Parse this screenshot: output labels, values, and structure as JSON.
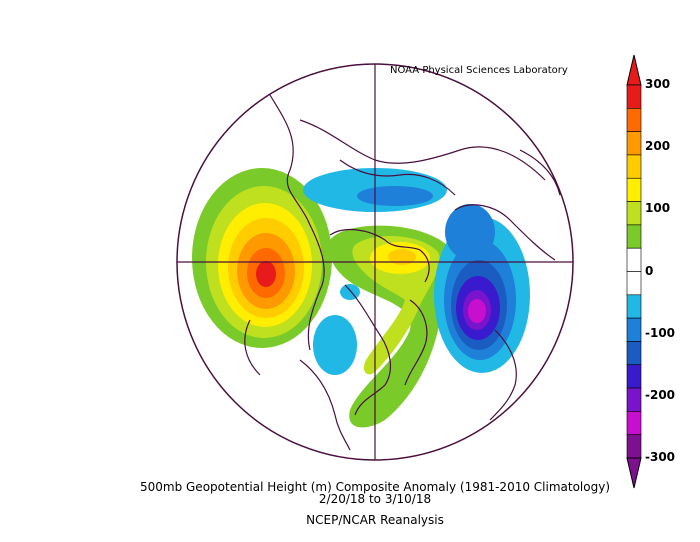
{
  "map": {
    "credit": "NOAA Physical Sciences Laboratory",
    "title_line1": "500mb Geopotential Height (m) Composite Anomaly (1981-2010 Climatology)",
    "title_line2": "2/20/18   to 3/10/18",
    "title_line3": "NCEP/NCAR Reanalysis",
    "projection": "north polar stereographic",
    "units": "m"
  },
  "colorbar": {
    "ticks": [
      "300",
      "200",
      "100",
      "0",
      "-100",
      "-200",
      "-300"
    ],
    "colors": [
      "#e81b1b",
      "#ff6a00",
      "#ff9900",
      "#ffcc00",
      "#ffee00",
      "#bfe01e",
      "#7acb2a",
      "#ffffff",
      "#ffffff",
      "#22b8e6",
      "#1e80d8",
      "#1a5cc2",
      "#3a1acd",
      "#7a14cc",
      "#c80fd0",
      "#7e1090"
    ]
  }
}
